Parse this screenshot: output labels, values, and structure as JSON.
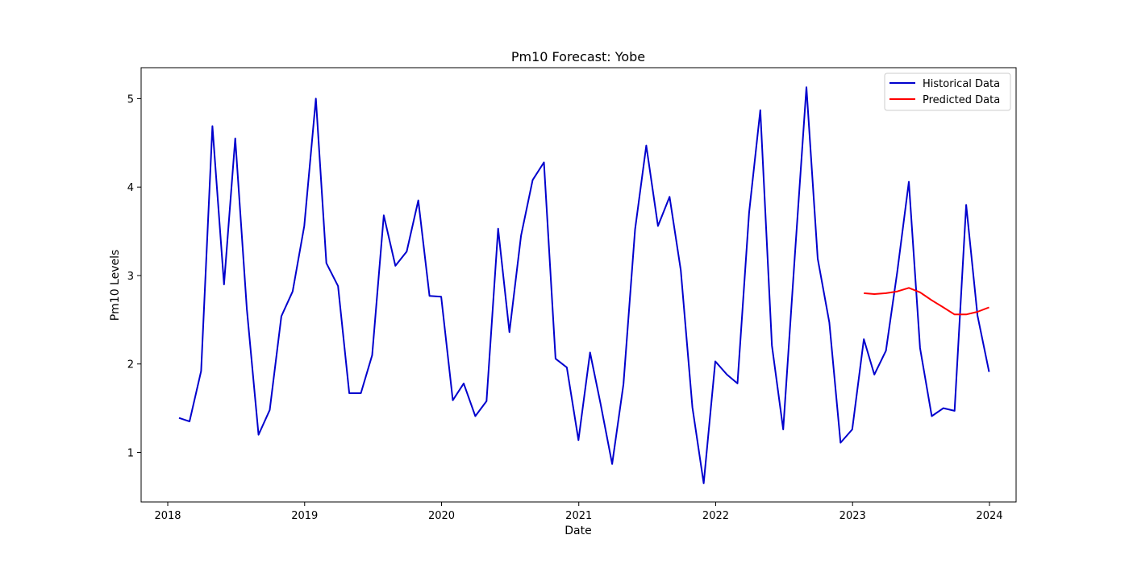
{
  "chart_data": {
    "type": "line",
    "title": "Pm10 Forecast: Yobe",
    "xlabel": "Date",
    "ylabel": "Pm10 Levels",
    "x_ticks": [
      "2018",
      "2019",
      "2020",
      "2021",
      "2022",
      "2023",
      "2024"
    ],
    "y_ticks": [
      "1",
      "2",
      "3",
      "4",
      "5"
    ],
    "xlim": [
      "2017-10-22",
      "2024-03-12"
    ],
    "ylim": [
      0.44,
      5.35
    ],
    "grid": false,
    "legend": "top-right",
    "series": [
      {
        "name": "Historical Data",
        "color": "#0000cd",
        "x": [
          "2018-01-31",
          "2018-02-28",
          "2018-03-31",
          "2018-04-30",
          "2018-05-31",
          "2018-06-30",
          "2018-07-31",
          "2018-08-31",
          "2018-09-30",
          "2018-10-31",
          "2018-11-30",
          "2018-12-31",
          "2019-01-31",
          "2019-02-28",
          "2019-03-31",
          "2019-04-30",
          "2019-05-31",
          "2019-06-30",
          "2019-07-31",
          "2019-08-31",
          "2019-09-30",
          "2019-10-31",
          "2019-11-30",
          "2019-12-31",
          "2020-01-31",
          "2020-02-29",
          "2020-03-31",
          "2020-04-30",
          "2020-05-31",
          "2020-06-30",
          "2020-07-31",
          "2020-08-31",
          "2020-09-30",
          "2020-10-31",
          "2020-11-30",
          "2020-12-31",
          "2021-01-31",
          "2021-02-28",
          "2021-03-31",
          "2021-04-30",
          "2021-05-31",
          "2021-06-30",
          "2021-07-31",
          "2021-08-31",
          "2021-09-30",
          "2021-10-31",
          "2021-11-30",
          "2021-12-31",
          "2022-01-31",
          "2022-02-28",
          "2022-03-31",
          "2022-04-30",
          "2022-05-31",
          "2022-06-30",
          "2022-07-31",
          "2022-08-31",
          "2022-09-30",
          "2022-10-31",
          "2022-11-30",
          "2022-12-31",
          "2023-01-31",
          "2023-02-28",
          "2023-03-31",
          "2023-04-30",
          "2023-05-31",
          "2023-06-30",
          "2023-07-31",
          "2023-08-31",
          "2023-09-30",
          "2023-10-31",
          "2023-11-30",
          "2023-12-31"
        ],
        "values": [
          1.39,
          1.35,
          1.92,
          4.69,
          2.9,
          4.55,
          2.62,
          1.2,
          1.48,
          2.54,
          2.82,
          3.56,
          5.0,
          3.14,
          2.88,
          1.67,
          1.67,
          2.1,
          3.68,
          3.11,
          3.27,
          3.85,
          2.77,
          2.76,
          1.59,
          1.78,
          1.41,
          1.58,
          3.53,
          2.36,
          3.45,
          4.08,
          4.28,
          2.06,
          1.96,
          1.14,
          2.13,
          1.55,
          0.87,
          1.77,
          3.52,
          4.47,
          3.56,
          3.89,
          3.06,
          1.51,
          0.65,
          2.03,
          1.88,
          1.78,
          3.71,
          4.87,
          2.21,
          1.26,
          3.22,
          5.13,
          3.19,
          2.47,
          1.11,
          1.26,
          2.28,
          1.88,
          2.15,
          3.04,
          4.06,
          2.18,
          1.41,
          1.5,
          1.47,
          3.8,
          2.55,
          1.91
        ]
      },
      {
        "name": "Predicted Data",
        "color": "#ff0000",
        "x": [
          "2023-01-31",
          "2023-02-28",
          "2023-03-31",
          "2023-04-30",
          "2023-05-31",
          "2023-06-30",
          "2023-07-31",
          "2023-08-31",
          "2023-09-30",
          "2023-10-31",
          "2023-11-30",
          "2023-12-31"
        ],
        "values": [
          2.8,
          2.79,
          2.8,
          2.82,
          2.86,
          2.81,
          2.72,
          2.64,
          2.56,
          2.56,
          2.59,
          2.64
        ]
      }
    ]
  }
}
